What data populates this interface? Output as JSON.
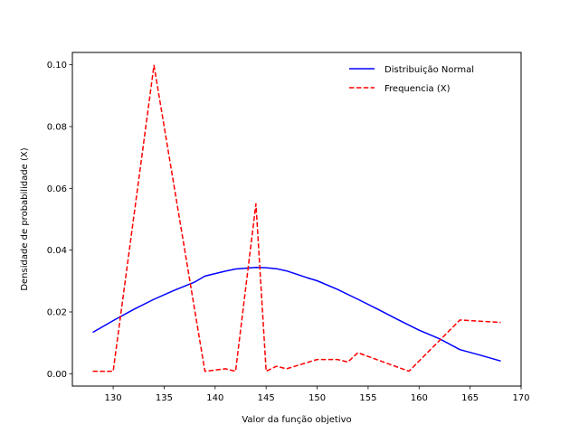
{
  "chart_data": {
    "type": "line",
    "title": "",
    "xlabel": "Valor da função objetivo",
    "ylabel": "Densidade de probabilidade (X)",
    "xlim": [
      126.0,
      170.0
    ],
    "ylim": [
      -0.004,
      0.104
    ],
    "xticks": [
      130,
      135,
      140,
      145,
      150,
      155,
      160,
      165,
      170
    ],
    "yticks": [
      0.0,
      0.02,
      0.04,
      0.06,
      0.08,
      0.1
    ],
    "ytick_labels": [
      "0.00",
      "0.02",
      "0.04",
      "0.06",
      "0.08",
      "0.10"
    ],
    "grid": false,
    "legend_position": "top-right",
    "series": [
      {
        "name": "Distribuição Normal",
        "color": "#0000ff",
        "style": "solid",
        "points": [
          [
            128,
            0.0134
          ],
          [
            130,
            0.0172
          ],
          [
            132,
            0.0208
          ],
          [
            134,
            0.0241
          ],
          [
            136,
            0.027
          ],
          [
            138,
            0.0297
          ],
          [
            139,
            0.0316
          ],
          [
            141,
            0.0332
          ],
          [
            142,
            0.0339
          ],
          [
            144,
            0.0344
          ],
          [
            145,
            0.0343
          ],
          [
            146,
            0.034
          ],
          [
            147,
            0.0333
          ],
          [
            149,
            0.0311
          ],
          [
            150,
            0.0301
          ],
          [
            152,
            0.0273
          ],
          [
            154,
            0.0241
          ],
          [
            156,
            0.0208
          ],
          [
            158,
            0.0174
          ],
          [
            160,
            0.0141
          ],
          [
            162,
            0.0113
          ],
          [
            164,
            0.0078
          ],
          [
            166,
            0.006
          ],
          [
            168,
            0.0041
          ]
        ]
      },
      {
        "name": "Frequencia (X)",
        "color": "#ff0000",
        "style": "dashed",
        "points": [
          [
            128,
            0.0008
          ],
          [
            130,
            0.0008
          ],
          [
            134,
            0.0998
          ],
          [
            139,
            0.0008
          ],
          [
            141,
            0.0016
          ],
          [
            142,
            0.0008
          ],
          [
            144,
            0.055
          ],
          [
            145,
            0.0008
          ],
          [
            146,
            0.0024
          ],
          [
            147,
            0.0016
          ],
          [
            150,
            0.0046
          ],
          [
            152,
            0.0046
          ],
          [
            153,
            0.0038
          ],
          [
            154,
            0.0068
          ],
          [
            159,
            0.0008
          ],
          [
            164,
            0.0174
          ],
          [
            168,
            0.0166
          ]
        ]
      }
    ]
  }
}
